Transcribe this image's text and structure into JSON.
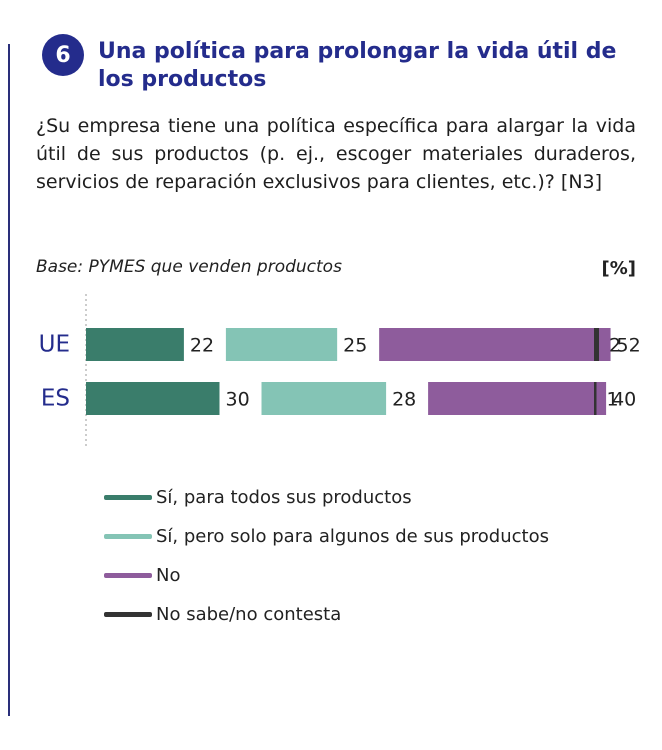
{
  "header": {
    "number": "6",
    "title": "Una política para prolongar la vida útil de los productos"
  },
  "question": "¿Su empresa tiene una política específica para alargar la vida útil de sus productos (p. ej., escoger materiales duraderos, servicios de reparación exclusivos para clientes, etc.)? [N3]",
  "base_note": "Base: PYMES que venden productos",
  "unit_label": "[%]",
  "colors": {
    "accent": "#242c8c",
    "si_todos": "#3a7d6b",
    "si_algunos": "#84c4b5",
    "no": "#8e5c9c",
    "ns_nc": "#333333"
  },
  "chart_data": {
    "type": "bar",
    "orientation": "horizontal",
    "stacked": true,
    "categories": [
      "UE",
      "ES"
    ],
    "series": [
      {
        "name": "Sí, para todos sus productos",
        "values": [
          22,
          30
        ],
        "color": "#3a7d6b"
      },
      {
        "name": "Sí, pero solo para algunos de sus productos",
        "values": [
          25,
          28
        ],
        "color": "#84c4b5"
      },
      {
        "name": "No",
        "values": [
          52,
          40
        ],
        "color": "#8e5c9c"
      },
      {
        "name": "No sabe/no contesta",
        "values": [
          2,
          1
        ],
        "color": "#333333"
      }
    ],
    "xlim": [
      0,
      100
    ],
    "title": "",
    "xlabel": "",
    "ylabel": "",
    "grid": false,
    "legend_position": "bottom"
  }
}
